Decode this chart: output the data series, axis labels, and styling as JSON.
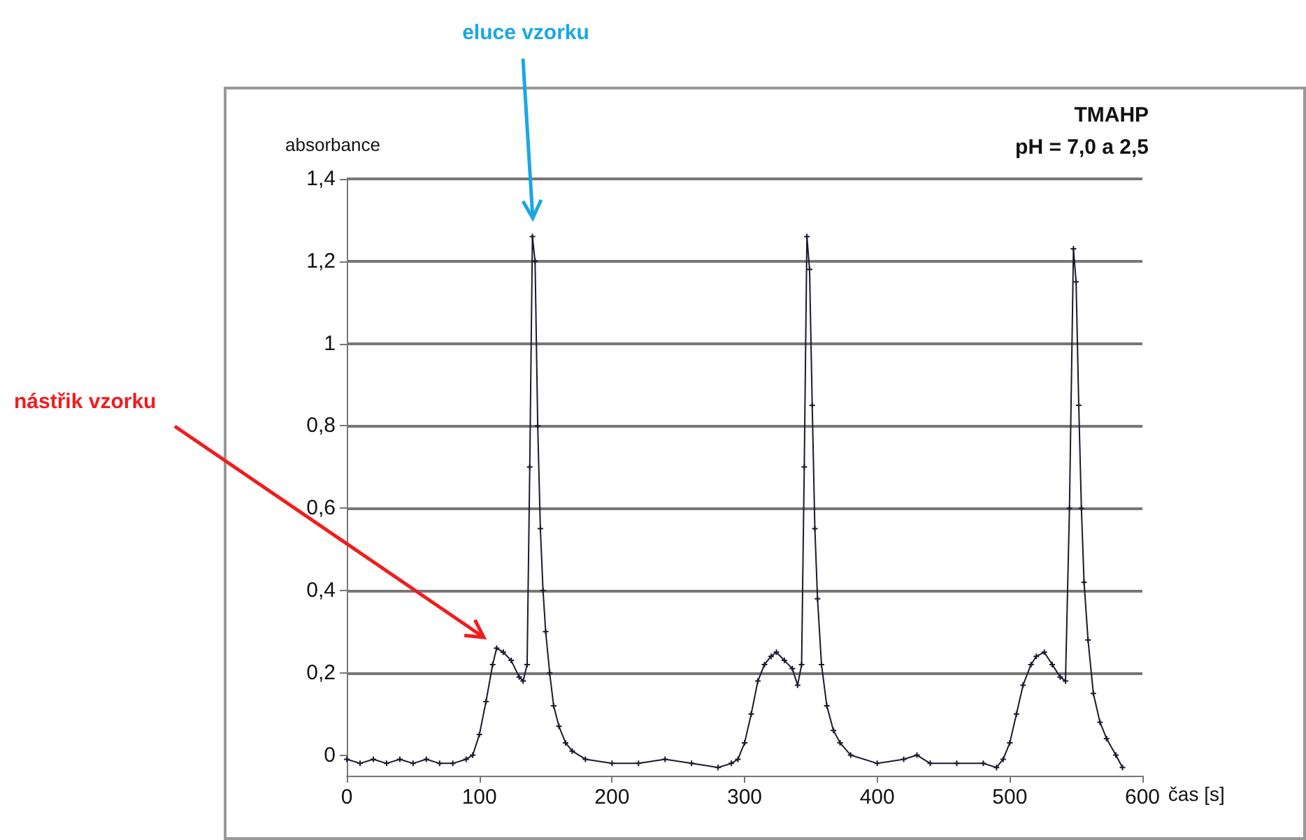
{
  "chart_data": {
    "type": "line",
    "title": "TMAHP",
    "subtitle": "pH = 7,0 a 2,5",
    "xlabel": "čas [s]",
    "ylabel": "absorbance",
    "annotations": [
      "eluce vzorku",
      "nástřik vzorku"
    ],
    "series": [
      {
        "color": "#1a1a2e",
        "x": [
          0,
          10,
          20,
          30,
          40,
          50,
          60,
          70,
          80,
          90,
          95,
          100,
          105,
          110,
          113,
          118,
          124,
          130,
          133,
          136,
          138,
          140,
          142,
          144,
          146,
          148,
          150,
          153,
          156,
          160,
          165,
          170,
          180,
          200,
          220,
          240,
          260,
          280,
          290,
          295,
          300,
          305,
          310,
          315,
          320,
          324,
          330,
          336,
          340,
          343,
          345,
          347,
          349,
          351,
          353,
          355,
          358,
          362,
          367,
          372,
          380,
          400,
          420,
          430,
          440,
          460,
          480,
          490,
          495,
          500,
          505,
          510,
          516,
          520,
          526,
          532,
          538,
          542,
          545,
          548,
          550,
          552,
          554,
          556,
          559,
          563,
          568,
          573,
          580,
          585
        ],
        "values": [
          -0.01,
          -0.02,
          -0.01,
          -0.02,
          -0.01,
          -0.02,
          -0.01,
          -0.02,
          -0.02,
          -0.01,
          0.0,
          0.05,
          0.13,
          0.22,
          0.26,
          0.25,
          0.23,
          0.19,
          0.18,
          0.22,
          0.7,
          1.26,
          1.2,
          0.8,
          0.55,
          0.4,
          0.3,
          0.2,
          0.12,
          0.07,
          0.03,
          0.01,
          -0.01,
          -0.02,
          -0.02,
          -0.01,
          -0.02,
          -0.03,
          -0.02,
          -0.01,
          0.03,
          0.1,
          0.18,
          0.22,
          0.24,
          0.25,
          0.23,
          0.21,
          0.17,
          0.22,
          0.7,
          1.26,
          1.18,
          0.85,
          0.55,
          0.38,
          0.22,
          0.12,
          0.06,
          0.03,
          0.0,
          -0.02,
          -0.01,
          0.0,
          -0.02,
          -0.02,
          -0.02,
          -0.03,
          -0.01,
          0.03,
          0.1,
          0.17,
          0.22,
          0.24,
          0.25,
          0.22,
          0.19,
          0.18,
          0.6,
          1.23,
          1.15,
          0.85,
          0.6,
          0.42,
          0.28,
          0.15,
          0.08,
          0.04,
          0.0,
          -0.03
        ]
      }
    ],
    "xlim": [
      0,
      600
    ],
    "xticks": [
      0,
      100,
      200,
      300,
      400,
      500,
      600
    ],
    "ylim": [
      -0.05,
      1.4
    ],
    "yticks": [
      0,
      {
        "value": 0.2,
        "label": "0,2"
      },
      {
        "value": 0.4,
        "label": "0,4"
      },
      {
        "value": 0.6,
        "label": "0,6"
      },
      {
        "value": 0.8,
        "label": "0,8"
      },
      1,
      {
        "value": 1.2,
        "label": "1,2"
      },
      {
        "value": 1.4,
        "label": "1,4"
      }
    ],
    "grid": "y",
    "marker": "cross",
    "line_style": "solid"
  }
}
